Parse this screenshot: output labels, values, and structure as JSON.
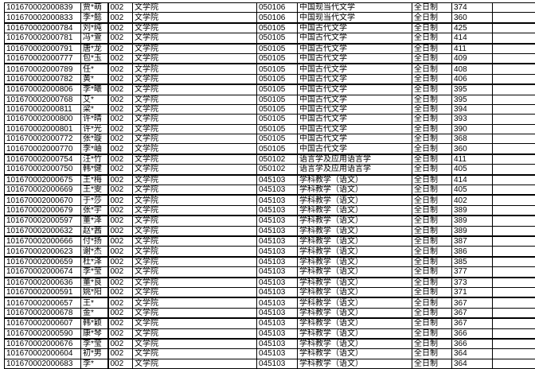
{
  "rows": [
    [
      "101670002000839",
      "贾*萌",
      "002",
      "文学院",
      "050106",
      "中国现当代文学",
      "全日制",
      "374"
    ],
    [
      "101670002000833",
      "李*懿",
      "002",
      "文学院",
      "050106",
      "中国现当代文学",
      "全日制",
      "360"
    ],
    [
      "101670002000784",
      "刘*纯",
      "002",
      "文学院",
      "050105",
      "中国古代文学",
      "全日制",
      "425"
    ],
    [
      "101670002000781",
      "冯*萱",
      "002",
      "文学院",
      "050105",
      "中国古代文学",
      "全日制",
      "414"
    ],
    [
      "101670002000791",
      "唐*龙",
      "002",
      "文学院",
      "050105",
      "中国古代文学",
      "全日制",
      "411"
    ],
    [
      "101670002000777",
      "包*玉",
      "002",
      "文学院",
      "050105",
      "中国古代文学",
      "全日制",
      "409"
    ],
    [
      "101670002000789",
      "任*",
      "002",
      "文学院",
      "050105",
      "中国古代文学",
      "全日制",
      "408"
    ],
    [
      "101670002000782",
      "黄*",
      "002",
      "文学院",
      "050105",
      "中国古代文学",
      "全日制",
      "406"
    ],
    [
      "101670002000806",
      "李*曦",
      "002",
      "文学院",
      "050105",
      "中国古代文学",
      "全日制",
      "395"
    ],
    [
      "101670002000768",
      "艾*",
      "002",
      "文学院",
      "050105",
      "中国古代文学",
      "全日制",
      "395"
    ],
    [
      "101670002000811",
      "梁*",
      "002",
      "文学院",
      "050105",
      "中国古代文学",
      "全日制",
      "394"
    ],
    [
      "101670002000800",
      "许*晴",
      "002",
      "文学院",
      "050105",
      "中国古代文学",
      "全日制",
      "393"
    ],
    [
      "101670002000801",
      "许*光",
      "002",
      "文学院",
      "050105",
      "中国古代文学",
      "全日制",
      "390"
    ],
    [
      "101670002000772",
      "张*璇",
      "002",
      "文学院",
      "050105",
      "中国古代文学",
      "全日制",
      "368"
    ],
    [
      "101670002000770",
      "李*岫",
      "002",
      "文学院",
      "050105",
      "中国古代文学",
      "全日制",
      "360"
    ],
    [
      "101670002000754",
      "汪*竹",
      "002",
      "文学院",
      "050102",
      "语言学及应用语言学",
      "全日制",
      "411"
    ],
    [
      "101670002000750",
      "韩*健",
      "002",
      "文学院",
      "050102",
      "语言学及应用语言学",
      "全日制",
      "405"
    ],
    [
      "101670002000675",
      "王*梅",
      "002",
      "文学院",
      "045103",
      "学科教学（语文）",
      "全日制",
      "414"
    ],
    [
      "101670002000669",
      "王*雯",
      "002",
      "文学院",
      "045103",
      "学科教学（语文）",
      "全日制",
      "405"
    ],
    [
      "101670002000670",
      "于*莎",
      "002",
      "文学院",
      "045103",
      "学科教学（语文）",
      "全日制",
      "402"
    ],
    [
      "101670002000679",
      "张*宇",
      "002",
      "文学院",
      "045103",
      "学科教学（语文）",
      "全日制",
      "389"
    ],
    [
      "101670002000597",
      "董*泽",
      "002",
      "文学院",
      "045103",
      "学科教学（语文）",
      "全日制",
      "389"
    ],
    [
      "101670002000632",
      "赵*茜",
      "002",
      "文学院",
      "045103",
      "学科教学（语文）",
      "全日制",
      "389"
    ],
    [
      "101670002000666",
      "付*扬",
      "002",
      "文学院",
      "045103",
      "学科教学（语文）",
      "全日制",
      "387"
    ],
    [
      "101670002000623",
      "谢*杰",
      "002",
      "文学院",
      "045103",
      "学科教学（语文）",
      "全日制",
      "386"
    ],
    [
      "101670002000659",
      "杜*泽",
      "002",
      "文学院",
      "045103",
      "学科教学（语文）",
      "全日制",
      "385"
    ],
    [
      "101670002000674",
      "李*莹",
      "002",
      "文学院",
      "045103",
      "学科教学（语文）",
      "全日制",
      "377"
    ],
    [
      "101670002000636",
      "董*良",
      "002",
      "文学院",
      "045103",
      "学科教学（语文）",
      "全日制",
      "373"
    ],
    [
      "101670002000591",
      "姚*阳",
      "002",
      "文学院",
      "045103",
      "学科教学（语文）",
      "全日制",
      "371"
    ],
    [
      "101670002000657",
      "王*",
      "002",
      "文学院",
      "045103",
      "学科教学（语文）",
      "全日制",
      "367"
    ],
    [
      "101670002000678",
      "金*",
      "002",
      "文学院",
      "045103",
      "学科教学（语文）",
      "全日制",
      "367"
    ],
    [
      "101670002000607",
      "韩*颖",
      "002",
      "文学院",
      "045103",
      "学科教学（语文）",
      "全日制",
      "367"
    ],
    [
      "101670002000590",
      "康*琴",
      "002",
      "文学院",
      "045103",
      "学科教学（语文）",
      "全日制",
      "366"
    ],
    [
      "101670002000676",
      "李*莹",
      "002",
      "文学院",
      "045103",
      "学科教学（语文）",
      "全日制",
      "366"
    ],
    [
      "101670002000604",
      "初*男",
      "002",
      "文学院",
      "045103",
      "学科教学（语文）",
      "全日制",
      "364"
    ],
    [
      "101670002000683",
      "李*",
      "002",
      "文学院",
      "045103",
      "学科教学（语文）",
      "全日制",
      "364"
    ]
  ]
}
